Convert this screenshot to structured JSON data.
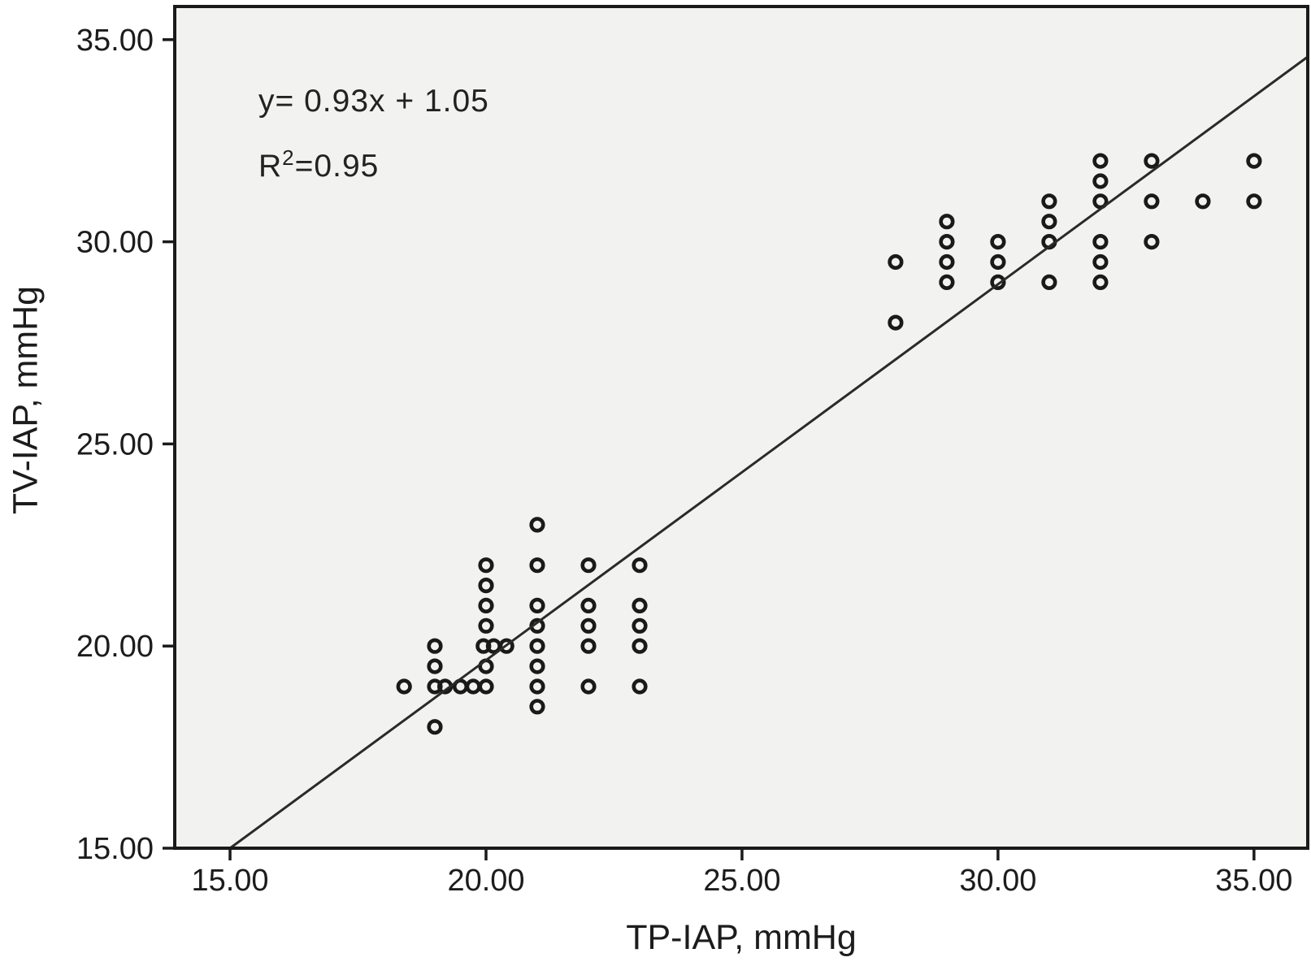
{
  "annotation": {
    "equation": "y= 0.93x + 1.05",
    "r2_base": "R",
    "r2_sup": "2",
    "r2_rest": "=0.95"
  },
  "style": {
    "plot_background": "#f2f2f0",
    "frame_color": "#1a1a1a",
    "point_color": "#1a1a1a",
    "line_color": "#2a2a2a",
    "text_color": "#1c1c1c"
  },
  "chart_data": {
    "type": "scatter",
    "title": "",
    "xlabel": "TP-IAP, mmHg",
    "ylabel": "TV-IAP, mmHg",
    "x_ticks": [
      15,
      20,
      25,
      30,
      35
    ],
    "y_ticks": [
      15,
      20,
      25,
      30,
      35
    ],
    "tick_label_format": "0.00",
    "xlim": [
      13.92,
      36.05
    ],
    "ylim": [
      15,
      35.82
    ],
    "grid": false,
    "legend": "none",
    "regression": {
      "slope": 0.93,
      "intercept": 1.05,
      "r2": 0.95,
      "label": "y= 0.93x + 1.05"
    },
    "points": [
      [
        18.4,
        19
      ],
      [
        19,
        20
      ],
      [
        19,
        19.5
      ],
      [
        19,
        19
      ],
      [
        19,
        18
      ],
      [
        19.2,
        19
      ],
      [
        19.5,
        19
      ],
      [
        19.75,
        19
      ],
      [
        19.95,
        20
      ],
      [
        20.15,
        20
      ],
      [
        20.4,
        20
      ],
      [
        20,
        22
      ],
      [
        20,
        21.5
      ],
      [
        20,
        21
      ],
      [
        20,
        20.5
      ],
      [
        20,
        19.5
      ],
      [
        20,
        19
      ],
      [
        21,
        23
      ],
      [
        21,
        22
      ],
      [
        21,
        21
      ],
      [
        21,
        20.5
      ],
      [
        21,
        20
      ],
      [
        21,
        19.5
      ],
      [
        21,
        19
      ],
      [
        21,
        18.5
      ],
      [
        22,
        22
      ],
      [
        22,
        21
      ],
      [
        22,
        20.5
      ],
      [
        22,
        20
      ],
      [
        22,
        19
      ],
      [
        23,
        22
      ],
      [
        23,
        21
      ],
      [
        23,
        20.5
      ],
      [
        23,
        20
      ],
      [
        23,
        19
      ],
      [
        28,
        29.5
      ],
      [
        28,
        28
      ],
      [
        29,
        30.5
      ],
      [
        29,
        30
      ],
      [
        29,
        29.5
      ],
      [
        29,
        29
      ],
      [
        30,
        30
      ],
      [
        30,
        29.5
      ],
      [
        30,
        29
      ],
      [
        31,
        31
      ],
      [
        31,
        30.5
      ],
      [
        31,
        30
      ],
      [
        31,
        29
      ],
      [
        32,
        32
      ],
      [
        32,
        31.5
      ],
      [
        32,
        31
      ],
      [
        32,
        30
      ],
      [
        32,
        29.5
      ],
      [
        32,
        29
      ],
      [
        33,
        32
      ],
      [
        33,
        31
      ],
      [
        33,
        30
      ],
      [
        34,
        31
      ],
      [
        35,
        32
      ],
      [
        35,
        31
      ]
    ]
  }
}
